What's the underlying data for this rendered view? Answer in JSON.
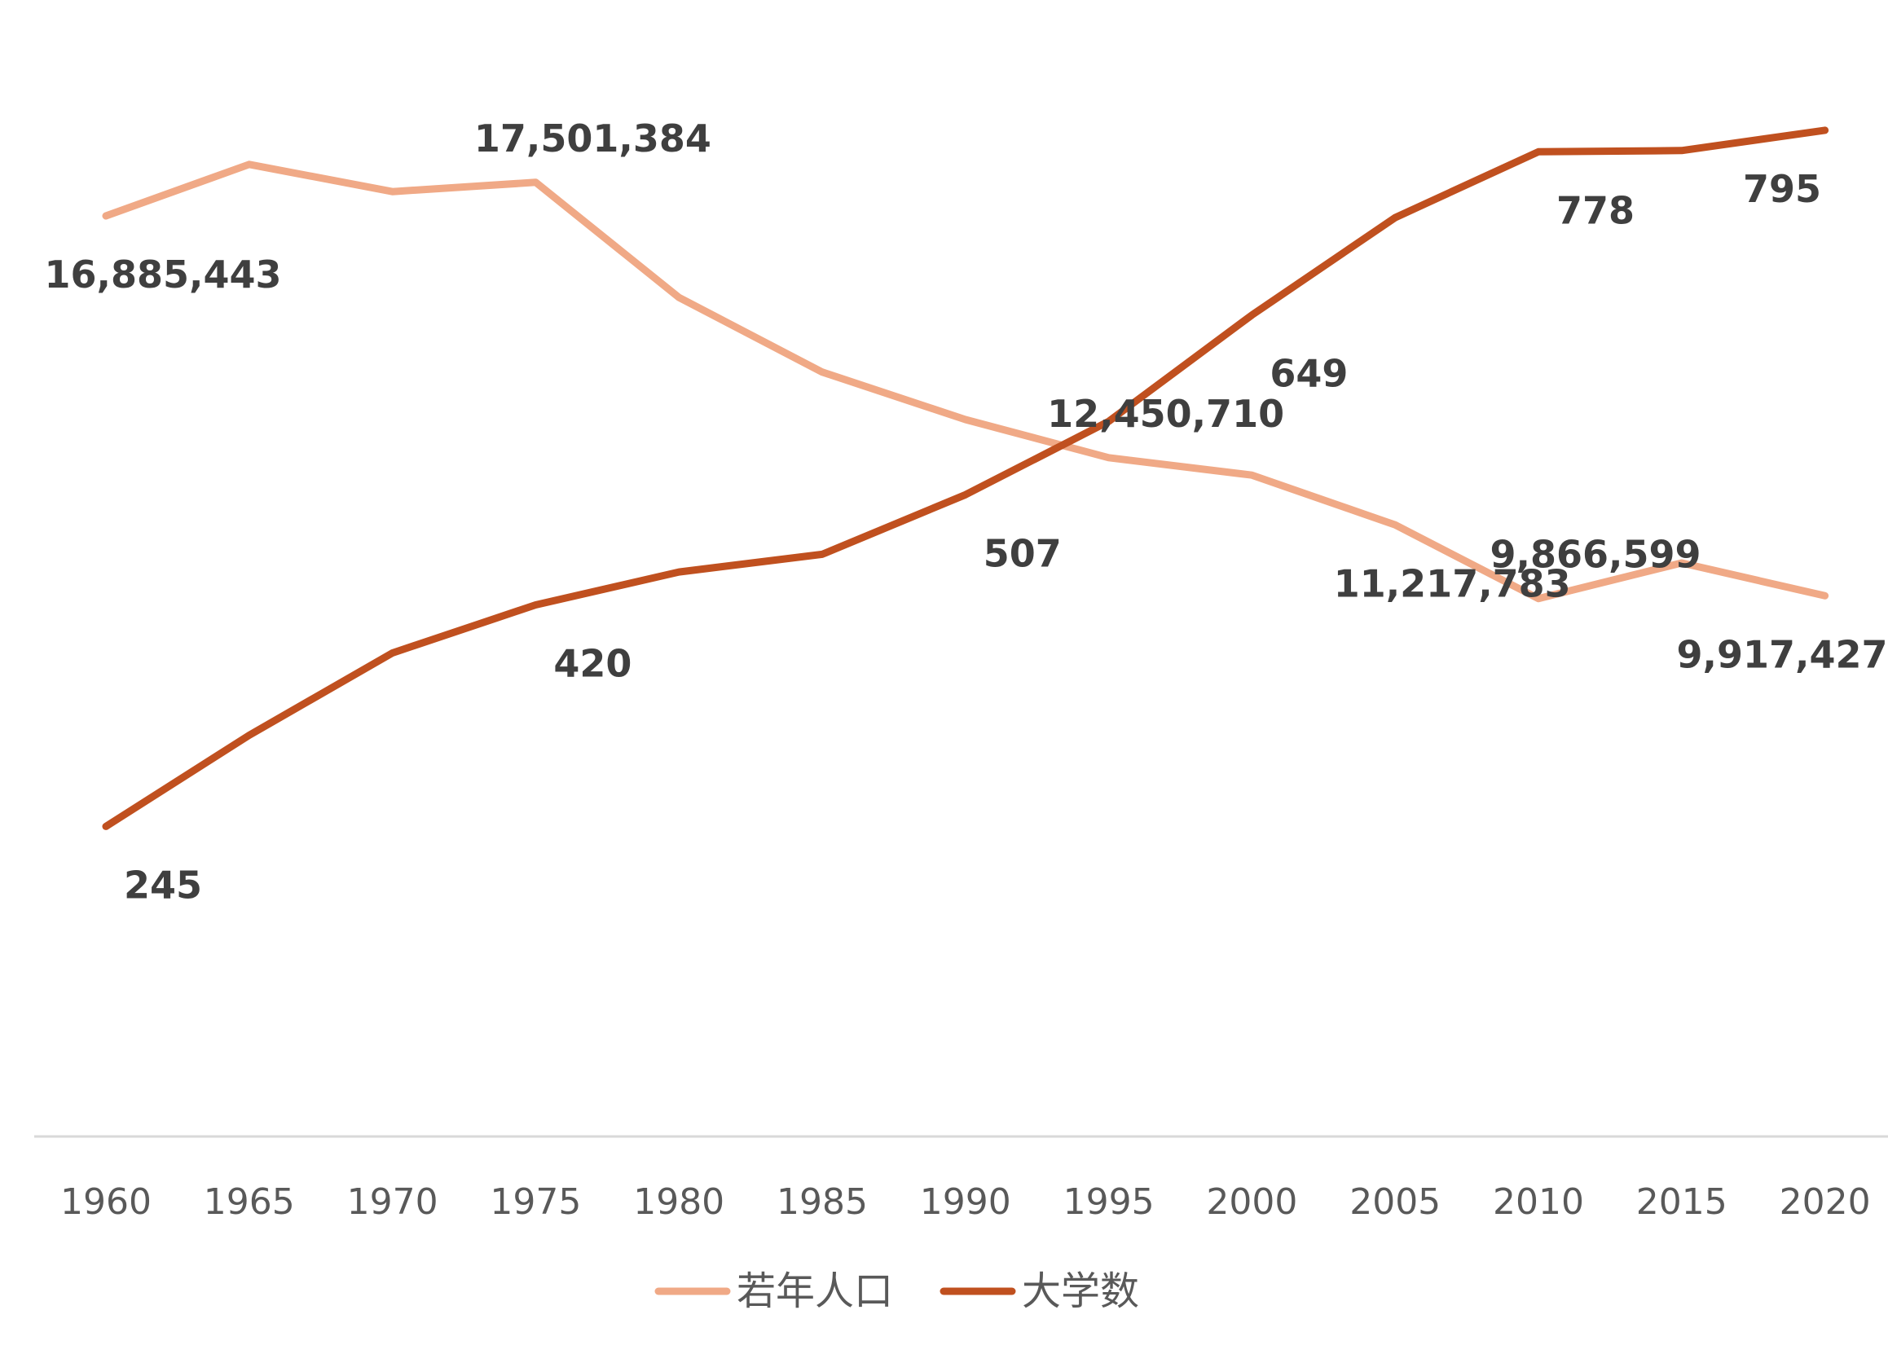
{
  "chart_data": {
    "type": "line",
    "title": "",
    "xlabel": "",
    "ylabel": "",
    "x": [
      "1960",
      "1965",
      "1970",
      "1975",
      "1980",
      "1985",
      "1990",
      "1995",
      "2000",
      "2005",
      "2010",
      "2015",
      "2020"
    ],
    "series": [
      {
        "name": "若年人口",
        "color": "#F0A986",
        "values": [
          16885443,
          17830000,
          17330000,
          17501384,
          15390000,
          14020000,
          13150000,
          12450710,
          12130000,
          11217783,
          9866599,
          10520000,
          9917427
        ],
        "labels": [
          {
            "index": 0,
            "text": "16,885,443",
            "position": "below"
          },
          {
            "index": 3,
            "text": "17,501,384",
            "position": "above"
          },
          {
            "index": 7,
            "text": "12,450,710",
            "position": "above"
          },
          {
            "index": 9,
            "text": "11,217,783",
            "position": "below"
          },
          {
            "index": 10,
            "text": "9,866,599",
            "position": "above"
          },
          {
            "index": 12,
            "text": "9,917,427",
            "position": "below"
          }
        ]
      },
      {
        "name": "大学数",
        "color": "#C0501F",
        "values": [
          245,
          317,
          382,
          420,
          446,
          460,
          507,
          565,
          649,
          726,
          778,
          779,
          795
        ],
        "labels": [
          {
            "index": 0,
            "text": "245",
            "position": "below"
          },
          {
            "index": 3,
            "text": "420",
            "position": "below"
          },
          {
            "index": 6,
            "text": "507",
            "position": "below"
          },
          {
            "index": 8,
            "text": "649",
            "position": "below"
          },
          {
            "index": 10,
            "text": "778",
            "position": "below"
          },
          {
            "index": 12,
            "text": "795",
            "position": "below"
          }
        ]
      }
    ],
    "y_population_range": [
      0,
      19500000
    ],
    "y_universities_range": [
      0,
      840
    ],
    "axes_visible": false,
    "grid": false,
    "legend": {
      "placement": "bottom-center",
      "entries": [
        "若年人口",
        "大学数"
      ]
    }
  }
}
